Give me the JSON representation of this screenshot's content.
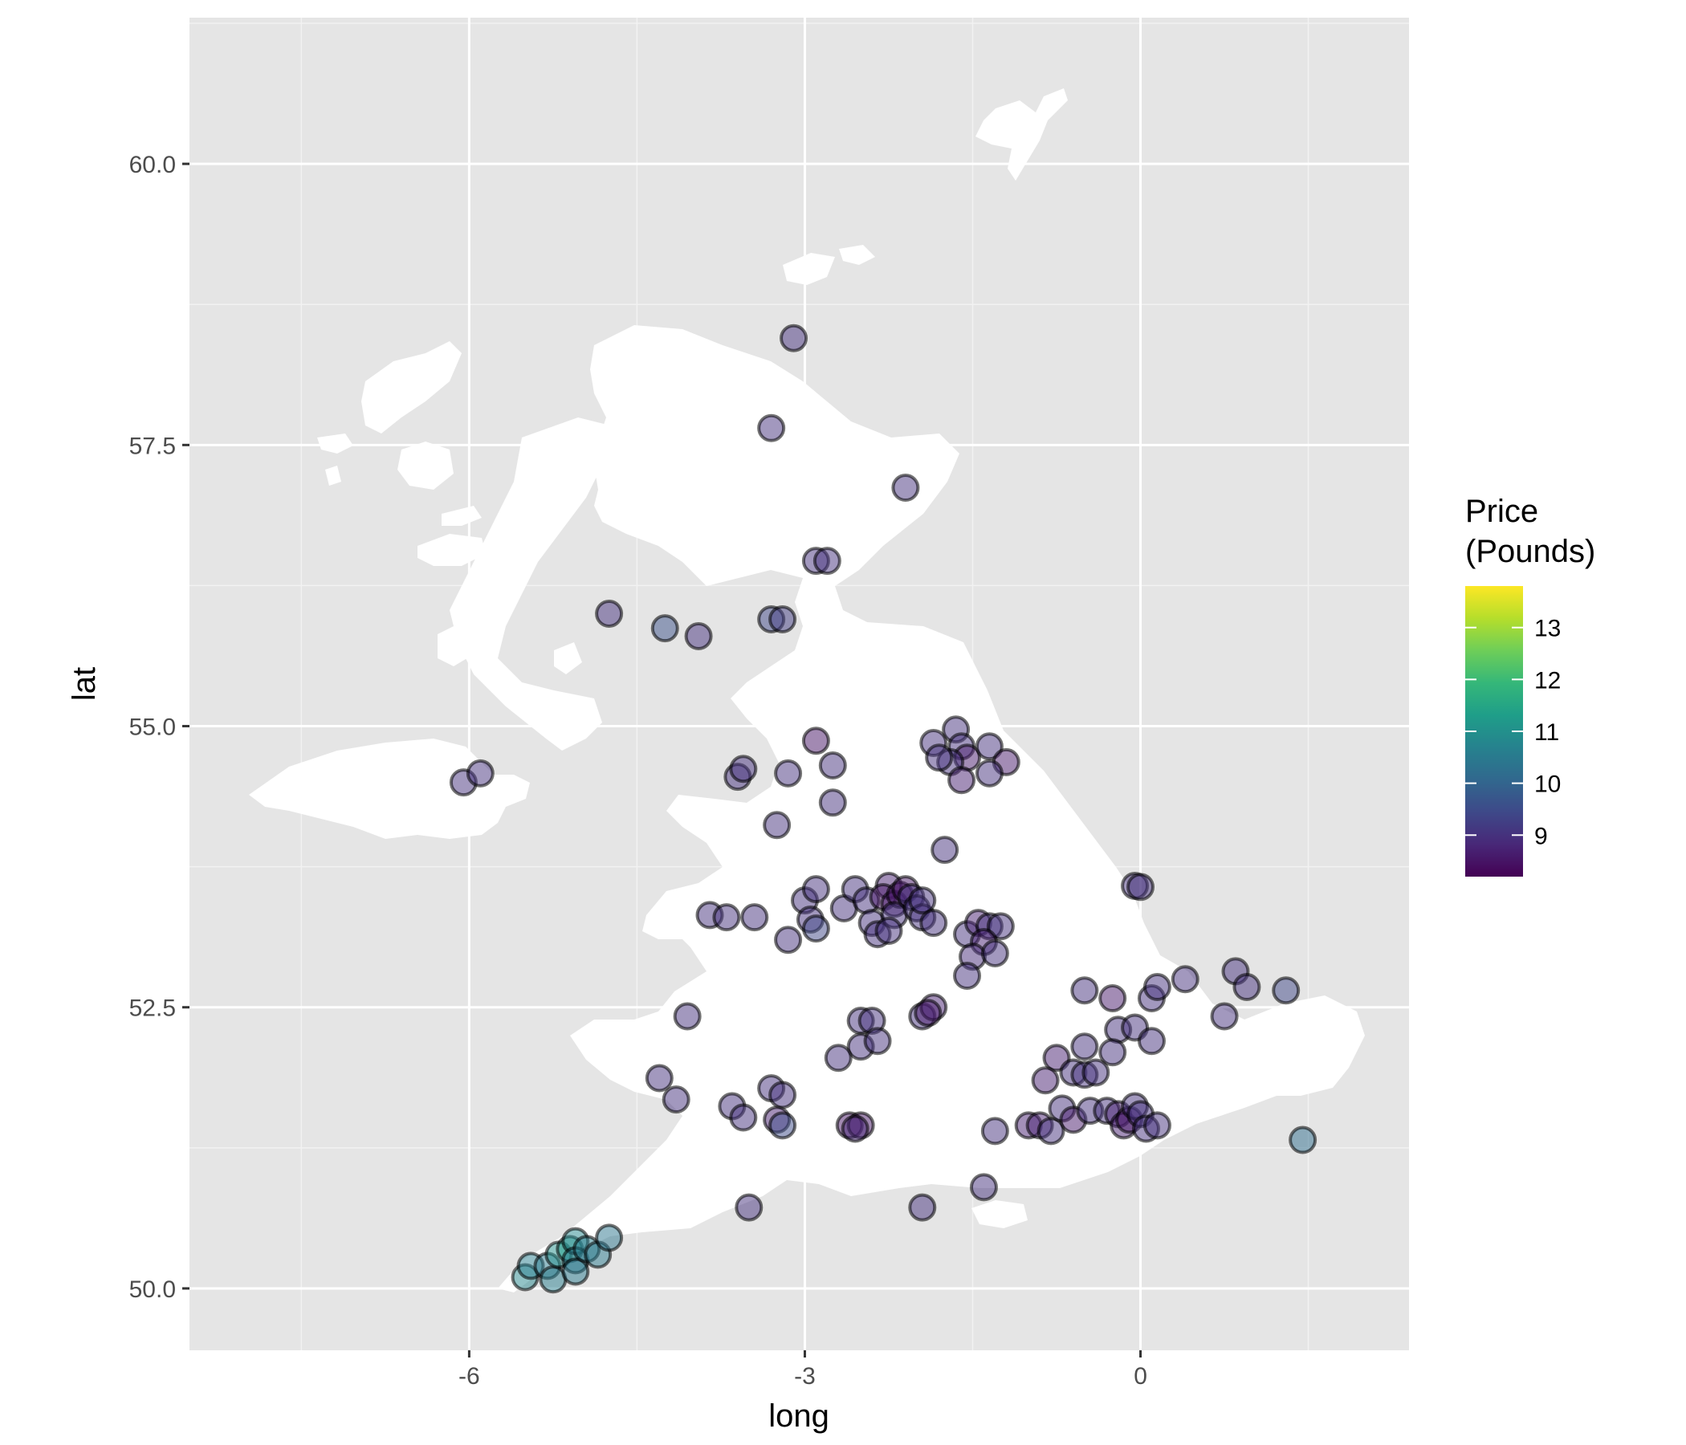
{
  "chart_data": {
    "type": "scatter",
    "title": "",
    "xlabel": "long",
    "ylabel": "lat",
    "xlim": [
      -8.5,
      2.4
    ],
    "ylim": [
      49.45,
      61.3
    ],
    "x_ticks": [
      -6,
      -3,
      0
    ],
    "x_tick_labels": [
      "-6",
      "-3",
      "0"
    ],
    "y_ticks": [
      50.0,
      52.5,
      55.0,
      57.5,
      60.0
    ],
    "y_tick_labels": [
      "50.0",
      "52.5",
      "55.0",
      "57.5",
      "60.0"
    ],
    "grid": true,
    "panel_background": "#e5e5e5",
    "land_color": "#ffffff",
    "point_outline_color": "#000000",
    "point_alpha": 0.5,
    "colorscale": "viridis",
    "legend": {
      "title_lines": [
        "Price",
        "(Pounds)"
      ],
      "position": "right",
      "range": [
        8.2,
        13.8
      ],
      "ticks": [
        9,
        10,
        11,
        12,
        13
      ],
      "tick_labels": [
        "9",
        "10",
        "11",
        "12",
        "13"
      ]
    },
    "series": [
      {
        "points": [
          [
            -3.1,
            58.45,
            9.0
          ],
          [
            -3.3,
            57.65,
            9.0
          ],
          [
            -2.1,
            57.12,
            9.0
          ],
          [
            -2.9,
            56.47,
            9.0
          ],
          [
            -2.8,
            56.47,
            9.0
          ],
          [
            -4.25,
            55.87,
            9.6
          ],
          [
            -4.75,
            56.0,
            9.0
          ],
          [
            -3.95,
            55.8,
            9.0
          ],
          [
            -3.3,
            55.95,
            9.4
          ],
          [
            -3.2,
            55.95,
            9.2
          ],
          [
            -6.05,
            54.5,
            9.0
          ],
          [
            -5.9,
            54.58,
            9.0
          ],
          [
            -2.9,
            54.87,
            8.5
          ],
          [
            -3.6,
            54.55,
            9.0
          ],
          [
            -3.55,
            54.62,
            9.0
          ],
          [
            -3.15,
            54.58,
            9.0
          ],
          [
            -2.75,
            54.65,
            9.0
          ],
          [
            -2.75,
            54.32,
            9.0
          ],
          [
            -3.25,
            54.12,
            9.0
          ],
          [
            -1.85,
            54.85,
            9.0
          ],
          [
            -1.65,
            54.97,
            9.0
          ],
          [
            -1.6,
            54.82,
            9.0
          ],
          [
            -1.55,
            54.72,
            8.6
          ],
          [
            -1.7,
            54.68,
            9.0
          ],
          [
            -1.8,
            54.72,
            9.0
          ],
          [
            -1.35,
            54.82,
            9.0
          ],
          [
            -1.2,
            54.68,
            8.6
          ],
          [
            -1.6,
            54.52,
            8.7
          ],
          [
            -1.35,
            54.58,
            9.0
          ],
          [
            -1.75,
            53.9,
            9.0
          ],
          [
            -0.05,
            53.58,
            9.0
          ],
          [
            0.0,
            53.57,
            9.0
          ],
          [
            -3.85,
            53.32,
            9.0
          ],
          [
            -3.7,
            53.3,
            9.0
          ],
          [
            -3.45,
            53.3,
            9.0
          ],
          [
            -3.0,
            53.45,
            9.0
          ],
          [
            -2.9,
            53.55,
            9.0
          ],
          [
            -2.95,
            53.28,
            9.0
          ],
          [
            -2.9,
            53.2,
            9.4
          ],
          [
            -2.65,
            53.38,
            9.0
          ],
          [
            -2.55,
            53.55,
            9.0
          ],
          [
            -2.45,
            53.45,
            9.0
          ],
          [
            -2.4,
            53.25,
            9.0
          ],
          [
            -2.35,
            53.15,
            9.0
          ],
          [
            -2.25,
            53.58,
            8.7
          ],
          [
            -2.3,
            53.48,
            8.5
          ],
          [
            -2.2,
            53.42,
            8.6
          ],
          [
            -2.15,
            53.5,
            8.5
          ],
          [
            -2.1,
            53.55,
            8.5
          ],
          [
            -2.05,
            53.48,
            9.0
          ],
          [
            -2.2,
            53.32,
            9.0
          ],
          [
            -2.0,
            53.38,
            9.0
          ],
          [
            -1.95,
            53.3,
            9.0
          ],
          [
            -2.25,
            53.18,
            9.0
          ],
          [
            -1.95,
            53.45,
            9.0
          ],
          [
            -1.85,
            53.25,
            9.0
          ],
          [
            -3.15,
            53.1,
            9.0
          ],
          [
            -1.55,
            53.15,
            9.0
          ],
          [
            -1.45,
            53.25,
            8.7
          ],
          [
            -1.35,
            53.22,
            9.0
          ],
          [
            -1.25,
            53.22,
            9.0
          ],
          [
            -1.4,
            53.08,
            8.7
          ],
          [
            -1.5,
            52.95,
            8.9
          ],
          [
            -1.3,
            52.98,
            9.0
          ],
          [
            -1.55,
            52.78,
            9.0
          ],
          [
            -2.5,
            52.38,
            9.0
          ],
          [
            -2.4,
            52.38,
            9.0
          ],
          [
            -2.5,
            52.15,
            9.0
          ],
          [
            -2.35,
            52.2,
            9.0
          ],
          [
            -1.95,
            52.42,
            9.0
          ],
          [
            -1.85,
            52.5,
            8.7
          ],
          [
            -1.9,
            52.45,
            8.6
          ],
          [
            -2.7,
            52.05,
            9.0
          ],
          [
            -4.05,
            52.42,
            9.0
          ],
          [
            -4.3,
            51.87,
            9.0
          ],
          [
            -4.15,
            51.68,
            9.0
          ],
          [
            -3.65,
            51.62,
            9.0
          ],
          [
            -3.55,
            51.52,
            9.0
          ],
          [
            -3.3,
            51.78,
            9.0
          ],
          [
            -3.2,
            51.72,
            9.0
          ],
          [
            -3.25,
            51.5,
            8.7
          ],
          [
            -3.2,
            51.45,
            9.5
          ],
          [
            -2.6,
            51.45,
            8.5
          ],
          [
            -2.5,
            51.45,
            8.5
          ],
          [
            -2.55,
            51.42,
            8.8
          ],
          [
            -1.95,
            50.72,
            9.0
          ],
          [
            -1.4,
            50.9,
            9.0
          ],
          [
            -1.3,
            51.4,
            9.0
          ],
          [
            -3.5,
            50.72,
            9.0
          ],
          [
            -0.5,
            52.65,
            9.0
          ],
          [
            -0.25,
            52.58,
            8.6
          ],
          [
            -0.2,
            52.3,
            9.0
          ],
          [
            0.1,
            52.58,
            9.0
          ],
          [
            0.15,
            52.68,
            9.0
          ],
          [
            0.4,
            52.75,
            9.0
          ],
          [
            -0.05,
            52.32,
            9.0
          ],
          [
            0.1,
            52.2,
            9.0
          ],
          [
            -0.25,
            52.1,
            9.0
          ],
          [
            -0.5,
            52.15,
            9.0
          ],
          [
            -0.75,
            52.05,
            8.7
          ],
          [
            -0.85,
            51.85,
            8.7
          ],
          [
            -0.6,
            51.92,
            9.0
          ],
          [
            -0.5,
            51.9,
            9.0
          ],
          [
            -0.4,
            51.92,
            9.0
          ],
          [
            0.75,
            52.42,
            9.0
          ],
          [
            0.85,
            52.82,
            9.0
          ],
          [
            0.95,
            52.68,
            9.0
          ],
          [
            1.3,
            52.65,
            9.4
          ],
          [
            1.45,
            51.32,
            10.2
          ],
          [
            -1.0,
            51.45,
            8.7
          ],
          [
            -0.9,
            51.45,
            8.7
          ],
          [
            -0.8,
            51.4,
            9.0
          ],
          [
            -0.7,
            51.6,
            9.0
          ],
          [
            -0.6,
            51.5,
            8.6
          ],
          [
            -0.45,
            51.58,
            9.0
          ],
          [
            -0.3,
            51.58,
            9.0
          ],
          [
            -0.2,
            51.55,
            8.7
          ],
          [
            -0.15,
            51.45,
            8.7
          ],
          [
            -0.1,
            51.5,
            8.5
          ],
          [
            -0.05,
            51.62,
            9.0
          ],
          [
            0.0,
            51.55,
            9.0
          ],
          [
            0.05,
            51.42,
            9.0
          ],
          [
            0.15,
            51.45,
            9.0
          ],
          [
            -5.5,
            50.1,
            10.8
          ],
          [
            -5.45,
            50.2,
            10.6
          ],
          [
            -5.3,
            50.2,
            10.5
          ],
          [
            -5.25,
            50.08,
            10.6
          ],
          [
            -5.2,
            50.3,
            11.0
          ],
          [
            -5.1,
            50.35,
            11.3
          ],
          [
            -5.05,
            50.42,
            10.8
          ],
          [
            -5.05,
            50.25,
            10.5
          ],
          [
            -5.05,
            50.15,
            10.5
          ],
          [
            -4.95,
            50.35,
            10.6
          ],
          [
            -4.85,
            50.3,
            10.5
          ],
          [
            -4.75,
            50.45,
            10.4
          ]
        ]
      }
    ]
  }
}
